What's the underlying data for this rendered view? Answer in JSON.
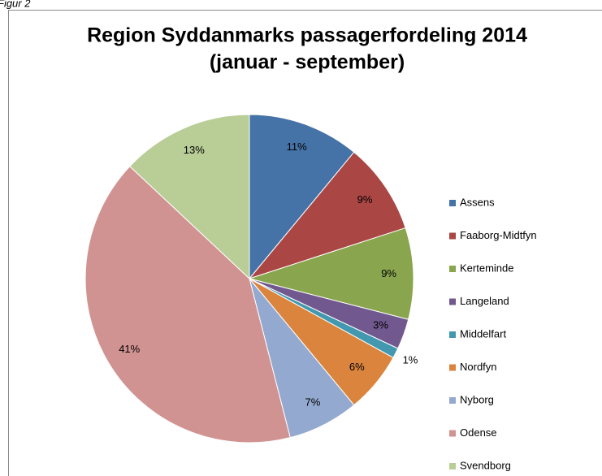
{
  "caption": "Figur 2",
  "chart_data": {
    "type": "pie",
    "title": "Region Syddanmarks passagerfordeling 2014",
    "subtitle": "(januar - september)",
    "categories": [
      "Assens",
      "Faaborg-Midtfyn",
      "Kerteminde",
      "Langeland",
      "Middelfart",
      "Nordfyn",
      "Nyborg",
      "Odense",
      "Svendborg"
    ],
    "values": [
      11,
      9,
      9,
      3,
      1,
      6,
      7,
      41,
      13
    ],
    "value_labels": [
      "11%",
      "9%",
      "9%",
      "3%",
      "1%",
      "6%",
      "7%",
      "41%",
      "13%"
    ],
    "colors": [
      "#4572a7",
      "#aa4643",
      "#89a54e",
      "#71588f",
      "#4198af",
      "#db843d",
      "#93a9cf",
      "#d19392",
      "#b9cd96"
    ],
    "legend": "right"
  }
}
